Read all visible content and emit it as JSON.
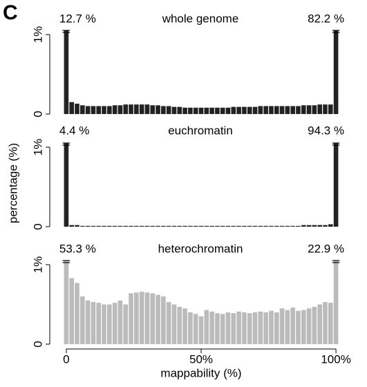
{
  "figure": {
    "label": "C",
    "ylabel": "percentage (%)"
  },
  "chart_data": [
    {
      "type": "bar",
      "title": "whole genome",
      "color": "#222222",
      "x": [
        0,
        2,
        4,
        6,
        8,
        10,
        12,
        14,
        16,
        18,
        20,
        22,
        24,
        26,
        28,
        30,
        32,
        34,
        36,
        38,
        40,
        42,
        44,
        46,
        48,
        50,
        52,
        54,
        56,
        58,
        60,
        62,
        64,
        66,
        68,
        70,
        72,
        74,
        76,
        78,
        80,
        82,
        84,
        86,
        88,
        90,
        92,
        94,
        96,
        98,
        100
      ],
      "values": [
        12.7,
        0.15,
        0.13,
        0.11,
        0.1,
        0.1,
        0.1,
        0.1,
        0.1,
        0.11,
        0.11,
        0.12,
        0.12,
        0.12,
        0.12,
        0.12,
        0.11,
        0.11,
        0.1,
        0.1,
        0.09,
        0.09,
        0.08,
        0.08,
        0.08,
        0.08,
        0.08,
        0.08,
        0.08,
        0.08,
        0.08,
        0.09,
        0.09,
        0.09,
        0.09,
        0.09,
        0.1,
        0.1,
        0.1,
        0.1,
        0.1,
        0.1,
        0.1,
        0.1,
        0.11,
        0.11,
        0.11,
        0.12,
        0.12,
        0.12,
        82.2
      ],
      "value_labels": [
        "12.7 %",
        null,
        null,
        null,
        null,
        null,
        null,
        null,
        null,
        null,
        null,
        null,
        null,
        null,
        null,
        null,
        null,
        null,
        null,
        null,
        null,
        null,
        null,
        null,
        null,
        null,
        null,
        null,
        null,
        null,
        null,
        null,
        null,
        null,
        null,
        null,
        null,
        null,
        null,
        null,
        null,
        null,
        null,
        null,
        null,
        null,
        null,
        null,
        null,
        null,
        "82.2 %"
      ],
      "xlim": [
        -1,
        101
      ],
      "ylim": [
        0,
        1
      ],
      "yticks": [
        0,
        {
          "value": 1,
          "label": "1%"
        }
      ]
    },
    {
      "type": "bar",
      "title": "euchromatin",
      "color": "#222222",
      "x": [
        0,
        2,
        4,
        6,
        8,
        10,
        12,
        14,
        16,
        18,
        20,
        22,
        24,
        26,
        28,
        30,
        32,
        34,
        36,
        38,
        40,
        42,
        44,
        46,
        48,
        50,
        52,
        54,
        56,
        58,
        60,
        62,
        64,
        66,
        68,
        70,
        72,
        74,
        76,
        78,
        80,
        82,
        84,
        86,
        88,
        90,
        92,
        94,
        96,
        98,
        100
      ],
      "values": [
        4.4,
        0.02,
        0.02,
        0.01,
        0.01,
        0.01,
        0.01,
        0.01,
        0.01,
        0.01,
        0.01,
        0.01,
        0.01,
        0.01,
        0.01,
        0.01,
        0.01,
        0.01,
        0.01,
        0.01,
        0.01,
        0.01,
        0.01,
        0.01,
        0.01,
        0.01,
        0.01,
        0.01,
        0.01,
        0.01,
        0.01,
        0.01,
        0.01,
        0.01,
        0.01,
        0.01,
        0.01,
        0.01,
        0.01,
        0.01,
        0.01,
        0.01,
        0.01,
        0.01,
        0.02,
        0.02,
        0.02,
        0.02,
        0.02,
        0.03,
        94.3
      ],
      "value_labels": [
        "4.4 %",
        null,
        null,
        null,
        null,
        null,
        null,
        null,
        null,
        null,
        null,
        null,
        null,
        null,
        null,
        null,
        null,
        null,
        null,
        null,
        null,
        null,
        null,
        null,
        null,
        null,
        null,
        null,
        null,
        null,
        null,
        null,
        null,
        null,
        null,
        null,
        null,
        null,
        null,
        null,
        null,
        null,
        null,
        null,
        null,
        null,
        null,
        null,
        null,
        null,
        "94.3 %"
      ],
      "xlim": [
        -1,
        101
      ],
      "ylim": [
        0,
        1
      ],
      "yticks": [
        0,
        {
          "value": 1,
          "label": "1%"
        }
      ]
    },
    {
      "type": "bar",
      "title": "heterochromatin",
      "color": "#bbbbbb",
      "xlabel": "mappability (%)",
      "x": [
        0,
        2,
        4,
        6,
        8,
        10,
        12,
        14,
        16,
        18,
        20,
        22,
        24,
        26,
        28,
        30,
        32,
        34,
        36,
        38,
        40,
        42,
        44,
        46,
        48,
        50,
        52,
        54,
        56,
        58,
        60,
        62,
        64,
        66,
        68,
        70,
        72,
        74,
        76,
        78,
        80,
        82,
        84,
        86,
        88,
        90,
        92,
        94,
        96,
        98,
        100
      ],
      "values": [
        53.3,
        0.83,
        0.77,
        0.6,
        0.55,
        0.53,
        0.52,
        0.5,
        0.5,
        0.52,
        0.55,
        0.5,
        0.64,
        0.65,
        0.66,
        0.65,
        0.64,
        0.62,
        0.6,
        0.53,
        0.5,
        0.47,
        0.45,
        0.4,
        0.38,
        0.35,
        0.43,
        0.41,
        0.39,
        0.38,
        0.4,
        0.39,
        0.41,
        0.4,
        0.39,
        0.4,
        0.41,
        0.4,
        0.42,
        0.4,
        0.45,
        0.43,
        0.46,
        0.42,
        0.43,
        0.45,
        0.47,
        0.5,
        0.53,
        0.52,
        22.9
      ],
      "value_labels": [
        "53.3 %",
        null,
        null,
        null,
        null,
        null,
        null,
        null,
        null,
        null,
        null,
        null,
        null,
        null,
        null,
        null,
        null,
        null,
        null,
        null,
        null,
        null,
        null,
        null,
        null,
        null,
        null,
        null,
        null,
        null,
        null,
        null,
        null,
        null,
        null,
        null,
        null,
        null,
        null,
        null,
        null,
        null,
        null,
        null,
        null,
        null,
        null,
        null,
        null,
        null,
        "22.9 %"
      ],
      "xlim": [
        -1,
        101
      ],
      "ylim": [
        0,
        1
      ],
      "yticks": [
        0,
        {
          "value": 1,
          "label": "1%"
        }
      ],
      "xticks": [
        0,
        {
          "value": 50,
          "label": "50%"
        },
        {
          "value": 100,
          "label": "100%"
        }
      ]
    }
  ]
}
